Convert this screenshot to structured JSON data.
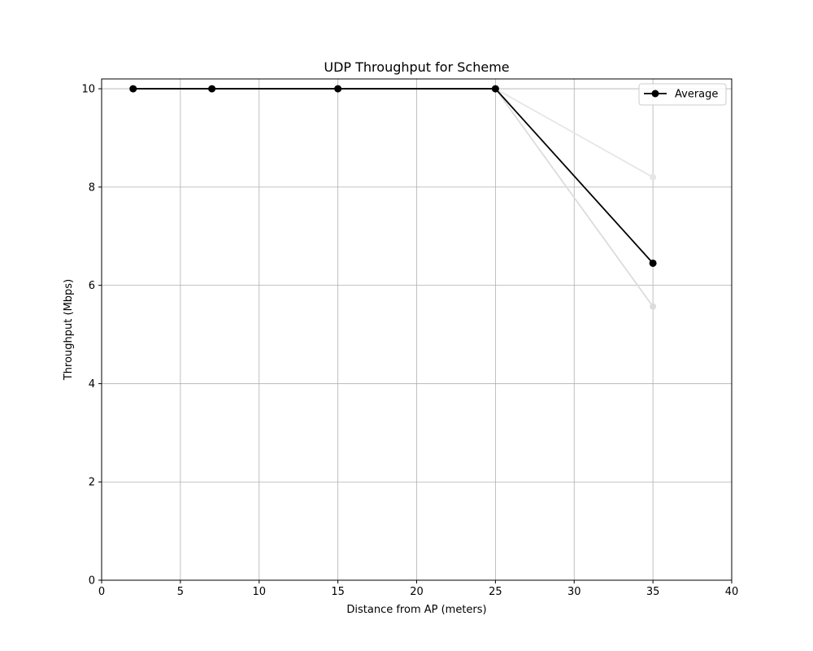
{
  "chart_data": {
    "type": "line",
    "title": "UDP Throughput for Scheme",
    "xlabel": "Distance from AP (meters)",
    "ylabel": "Throughput (Mbps)",
    "xlim": [
      0,
      40
    ],
    "ylim": [
      0,
      10.2
    ],
    "xticks": [
      0,
      5,
      10,
      15,
      20,
      25,
      30,
      35,
      40
    ],
    "yticks": [
      0,
      2,
      4,
      6,
      8,
      10
    ],
    "grid": true,
    "legend_position": "top-right",
    "series": [
      {
        "x": [
          2,
          7,
          15,
          25,
          35
        ],
        "values": [
          10,
          10,
          10,
          10,
          8.2
        ],
        "color": "#e6e6e6",
        "legend": false
      },
      {
        "x": [
          2,
          7,
          15,
          25,
          35
        ],
        "values": [
          10,
          10,
          10,
          10,
          5.57
        ],
        "color": "#dcdcdc",
        "legend": false
      },
      {
        "name": "Average",
        "x": [
          2,
          7,
          15,
          25,
          35
        ],
        "values": [
          10,
          10,
          10,
          10,
          6.45
        ],
        "color": "#000000",
        "legend": true
      }
    ]
  }
}
